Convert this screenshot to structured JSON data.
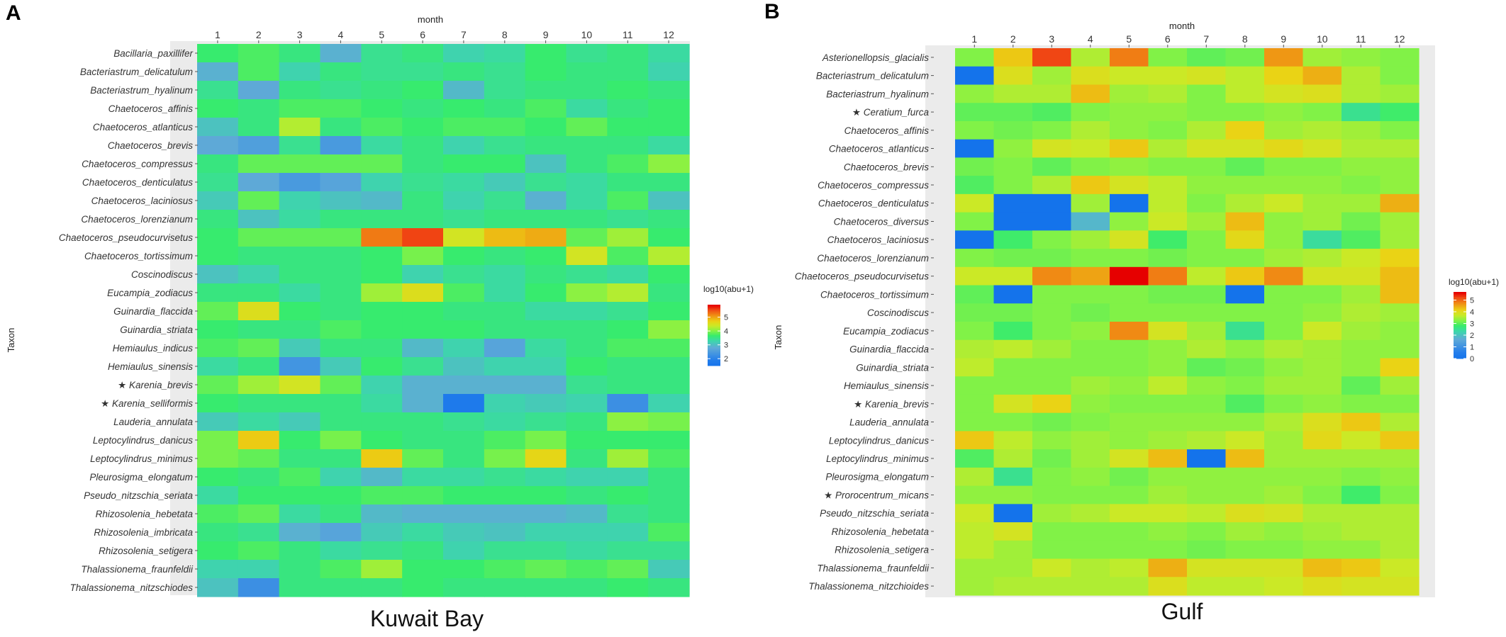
{
  "figure": {
    "colorbar_title": "log10(abu+1)",
    "x_axis_title": "month",
    "y_axis_title": "Taxon",
    "star_glyph": "★"
  },
  "chart_data": [
    {
      "type": "heatmap",
      "panel_label": "A",
      "caption": "Kuwait Bay",
      "xlabel": "month",
      "ylabel": "Taxon",
      "legend_title": "log10(abu+1)",
      "x": [
        "1",
        "2",
        "3",
        "4",
        "5",
        "6",
        "7",
        "8",
        "9",
        "10",
        "11",
        "12"
      ],
      "rows": [
        "Bacillaria_paxillifer",
        "Bacteriastrum_delicatulum",
        "Bacteriastrum_hyalinum",
        "Chaetoceros_affinis",
        "Chaetoceros_atlanticus",
        "Chaetoceros_brevis",
        "Chaetoceros_compressus",
        "Chaetoceros_denticulatus",
        "Chaetoceros_laciniosus",
        "Chaetoceros_lorenzianum",
        "Chaetoceros_pseudocurvisetus",
        "Chaetoceros_tortissimum",
        "Coscinodiscus",
        "Eucampia_zodiacus",
        "Guinardia_flaccida",
        "Guinardia_striata",
        "Hemiaulus_indicus",
        "Hemiaulus_sinensis",
        "Karenia_brevis",
        "Karenia_selliformis",
        "Lauderia_annulata",
        "Leptocylindrus_danicus",
        "Leptocylindrus_minimus",
        "Pleurosigma_elongatum",
        "Pseudo_nitzschia_seriata",
        "Rhizosolenia_hebetata",
        "Rhizosolenia_imbricata",
        "Rhizosolenia_setigera",
        "Thalassionema_fraunfeldii",
        "Thalassionema_nitzschiodes"
      ],
      "starred": [
        "Karenia_brevis",
        "Karenia_selliformis"
      ],
      "color_range": [
        1.5,
        5.9
      ],
      "legend_ticks": [
        2,
        3,
        4,
        5
      ],
      "values": [
        [
          3.7,
          3.8,
          3.6,
          2.9,
          3.5,
          3.6,
          3.3,
          3.4,
          3.7,
          3.5,
          3.6,
          3.4
        ],
        [
          2.9,
          3.8,
          3.3,
          3.6,
          3.5,
          3.5,
          3.6,
          3.5,
          3.7,
          3.6,
          3.6,
          3.3
        ],
        [
          3.5,
          2.8,
          3.6,
          3.5,
          3.6,
          3.7,
          3.0,
          3.5,
          3.6,
          3.6,
          3.7,
          3.6
        ],
        [
          3.7,
          3.6,
          3.8,
          3.8,
          3.7,
          3.6,
          3.7,
          3.6,
          3.8,
          3.4,
          3.6,
          3.7
        ],
        [
          3.1,
          3.6,
          4.3,
          3.6,
          3.8,
          3.7,
          3.8,
          3.8,
          3.7,
          3.9,
          3.7,
          3.7
        ],
        [
          2.8,
          2.6,
          3.5,
          2.5,
          3.4,
          3.6,
          3.3,
          3.5,
          3.6,
          3.6,
          3.6,
          3.4
        ],
        [
          3.6,
          3.9,
          3.9,
          3.9,
          3.9,
          3.6,
          3.7,
          3.7,
          3.1,
          3.6,
          3.8,
          4.1
        ],
        [
          3.5,
          2.8,
          2.5,
          2.7,
          3.3,
          3.5,
          3.4,
          3.2,
          3.5,
          3.4,
          3.6,
          3.6
        ],
        [
          3.2,
          3.9,
          3.3,
          3.1,
          3.0,
          3.6,
          3.3,
          3.5,
          2.9,
          3.4,
          3.8,
          3.1
        ],
        [
          3.6,
          3.1,
          3.4,
          3.6,
          3.6,
          3.6,
          3.5,
          3.6,
          3.6,
          3.6,
          3.5,
          3.6
        ],
        [
          3.7,
          3.9,
          3.9,
          3.9,
          5.3,
          5.6,
          4.5,
          4.9,
          5.0,
          3.9,
          4.2,
          3.7
        ],
        [
          3.7,
          3.6,
          3.6,
          3.6,
          3.7,
          4.0,
          3.7,
          3.6,
          3.7,
          4.5,
          3.8,
          4.3
        ],
        [
          3.1,
          3.3,
          3.6,
          3.6,
          3.7,
          3.3,
          3.5,
          3.4,
          3.6,
          3.5,
          3.4,
          3.7
        ],
        [
          3.6,
          3.6,
          3.4,
          3.6,
          4.2,
          4.6,
          3.8,
          3.4,
          3.7,
          4.1,
          4.3,
          3.6
        ],
        [
          3.9,
          4.6,
          3.7,
          3.6,
          3.7,
          3.7,
          3.6,
          3.6,
          3.4,
          3.4,
          3.5,
          3.7
        ],
        [
          3.7,
          3.6,
          3.6,
          3.8,
          3.7,
          3.7,
          3.7,
          3.6,
          3.6,
          3.6,
          3.7,
          4.1
        ],
        [
          3.8,
          3.9,
          3.2,
          3.6,
          3.6,
          3.0,
          3.3,
          2.7,
          3.4,
          3.6,
          3.8,
          3.8
        ],
        [
          3.4,
          3.6,
          2.4,
          3.2,
          3.7,
          3.5,
          3.1,
          3.3,
          3.3,
          3.7,
          3.6,
          3.6
        ],
        [
          3.9,
          4.2,
          4.5,
          3.9,
          3.3,
          2.9,
          2.9,
          2.9,
          2.9,
          3.5,
          3.6,
          3.6
        ],
        [
          3.7,
          3.6,
          3.6,
          3.6,
          3.4,
          2.9,
          1.8,
          3.3,
          3.2,
          3.3,
          2.3,
          3.3
        ],
        [
          3.2,
          3.4,
          3.2,
          3.6,
          3.6,
          3.6,
          3.5,
          3.4,
          3.5,
          3.6,
          4.1,
          4.0
        ],
        [
          4.0,
          4.8,
          3.7,
          4.0,
          3.7,
          3.6,
          3.6,
          3.8,
          4.0,
          3.7,
          3.7,
          3.7
        ],
        [
          4.0,
          3.9,
          3.6,
          3.6,
          4.8,
          3.9,
          3.6,
          4.0,
          4.7,
          3.6,
          4.2,
          3.8
        ],
        [
          3.7,
          3.6,
          3.8,
          3.3,
          3.0,
          3.4,
          3.4,
          3.5,
          3.4,
          3.3,
          3.3,
          3.6
        ],
        [
          3.4,
          3.7,
          3.7,
          3.7,
          3.8,
          3.8,
          3.7,
          3.7,
          3.7,
          3.6,
          3.7,
          3.6
        ],
        [
          3.8,
          3.9,
          3.4,
          3.6,
          3.0,
          2.9,
          2.9,
          2.9,
          2.9,
          3.0,
          3.5,
          3.6
        ],
        [
          3.6,
          3.5,
          2.9,
          2.7,
          3.2,
          3.4,
          3.2,
          3.1,
          3.3,
          3.3,
          3.3,
          3.8
        ],
        [
          3.7,
          3.8,
          3.6,
          3.4,
          3.5,
          3.6,
          3.3,
          3.5,
          3.5,
          3.4,
          3.5,
          3.5
        ],
        [
          3.3,
          3.3,
          3.6,
          3.8,
          4.2,
          3.7,
          3.7,
          3.8,
          3.9,
          3.8,
          3.9,
          3.2
        ],
        [
          3.1,
          2.3,
          3.6,
          3.6,
          3.6,
          3.7,
          3.6,
          3.6,
          3.6,
          3.6,
          3.7,
          3.6
        ]
      ]
    },
    {
      "type": "heatmap",
      "panel_label": "B",
      "caption": "Gulf",
      "xlabel": "month",
      "ylabel": "Taxon",
      "legend_title": "log10(abu+1)",
      "x": [
        "1",
        "2",
        "3",
        "4",
        "5",
        "6",
        "7",
        "8",
        "9",
        "10",
        "11",
        "12"
      ],
      "rows": [
        "Asterionellopsis_glacialis",
        "Bacteriastrum_delicatulum",
        "Bacteriastrum_hyalinum",
        "Ceratium_furca",
        "Chaetoceros_affinis",
        "Chaetoceros_atlanticus",
        "Chaetoceros_brevis",
        "Chaetoceros_compressus",
        "Chaetoceros_denticulatus",
        "Chaetoceros_diversus",
        "Chaetoceros_laciniosus",
        "Chaetoceros_lorenzianum",
        "Chaetoceros_pseudocurvisetus",
        "Chaetoceros_tortissimum",
        "Coscinodiscus",
        "Eucampia_zodiacus",
        "Guinardia_flaccida",
        "Guinardia_striata",
        "Hemiaulus_sinensis",
        "Karenia_brevis",
        "Lauderia_annulata",
        "Leptocylindrus_danicus",
        "Leptocylindrus_minimus",
        "Pleurosigma_elongatum",
        "Prorocentrum_micans",
        "Pseudo_nitzschia_seriata",
        "Rhizosolenia_hebetata",
        "Rhizosolenia_setigera",
        "Thalassionema_fraunfeldii",
        "Thalassionema_nitzchioides"
      ],
      "starred": [
        "Ceratium_furca",
        "Karenia_brevis",
        "Prorocentrum_micans"
      ],
      "color_range": [
        0,
        5.7
      ],
      "legend_ticks": [
        0,
        1,
        2,
        3,
        4,
        5
      ],
      "values": [
        [
          3.3,
          4.3,
          5.3,
          3.6,
          4.9,
          3.3,
          3.1,
          3.2,
          4.7,
          3.5,
          3.4,
          3.3
        ],
        [
          0,
          4.0,
          3.5,
          4.0,
          3.8,
          3.8,
          3.9,
          3.7,
          4.2,
          4.5,
          3.6,
          3.3
        ],
        [
          3.4,
          3.6,
          3.6,
          4.4,
          3.5,
          3.6,
          3.3,
          3.7,
          3.9,
          4.0,
          3.6,
          3.5
        ],
        [
          3.1,
          3.1,
          3.0,
          3.3,
          3.4,
          3.4,
          3.3,
          3.3,
          3.4,
          3.3,
          2.6,
          2.9
        ],
        [
          3.3,
          3.2,
          3.3,
          3.6,
          3.4,
          3.3,
          3.6,
          4.2,
          3.5,
          3.6,
          3.5,
          3.3
        ],
        [
          0,
          3.4,
          3.9,
          3.8,
          4.3,
          3.6,
          3.9,
          3.9,
          4.1,
          3.9,
          3.6,
          3.6
        ],
        [
          3.2,
          3.3,
          3.1,
          3.3,
          3.4,
          3.3,
          3.3,
          3.1,
          3.3,
          3.3,
          3.4,
          3.4
        ],
        [
          3.0,
          3.3,
          3.6,
          4.3,
          3.9,
          3.7,
          3.4,
          3.4,
          3.4,
          3.4,
          3.3,
          3.4
        ],
        [
          3.8,
          0,
          0,
          3.5,
          0,
          3.7,
          3.3,
          3.6,
          3.8,
          3.5,
          3.5,
          4.5
        ],
        [
          3.3,
          0,
          0,
          1.9,
          3.4,
          3.8,
          3.5,
          4.4,
          3.4,
          3.5,
          3.2,
          3.5
        ],
        [
          0,
          2.9,
          3.3,
          3.5,
          3.9,
          2.9,
          3.3,
          4.1,
          3.4,
          2.5,
          3.0,
          3.5
        ],
        [
          3.3,
          3.2,
          3.2,
          3.3,
          3.3,
          3.2,
          3.3,
          3.3,
          3.5,
          3.6,
          3.8,
          4.2
        ],
        [
          3.8,
          3.8,
          4.8,
          4.6,
          5.7,
          4.9,
          3.7,
          4.3,
          4.8,
          3.9,
          3.9,
          4.4
        ],
        [
          3.1,
          0,
          3.3,
          3.3,
          3.3,
          3.2,
          3.2,
          0,
          3.3,
          3.3,
          3.5,
          4.4
        ],
        [
          3.2,
          3.2,
          3.3,
          3.2,
          3.3,
          3.3,
          3.3,
          3.3,
          3.3,
          3.4,
          3.6,
          3.5
        ],
        [
          3.3,
          2.9,
          3.3,
          3.4,
          4.8,
          3.9,
          3.5,
          2.6,
          3.3,
          3.8,
          3.5,
          3.4
        ],
        [
          3.6,
          3.7,
          3.5,
          3.3,
          3.3,
          3.4,
          3.6,
          3.4,
          3.6,
          3.5,
          3.4,
          3.4
        ],
        [
          3.7,
          3.3,
          3.3,
          3.3,
          3.3,
          3.4,
          3.1,
          3.2,
          3.4,
          3.5,
          3.4,
          4.2
        ],
        [
          3.3,
          3.3,
          3.3,
          3.5,
          3.4,
          3.7,
          3.4,
          3.3,
          3.5,
          3.5,
          3.1,
          3.5
        ],
        [
          3.3,
          3.9,
          4.2,
          3.4,
          3.3,
          3.3,
          3.3,
          3.0,
          3.3,
          3.4,
          3.3,
          3.3
        ],
        [
          3.3,
          3.3,
          3.2,
          3.3,
          3.4,
          3.4,
          3.4,
          3.4,
          3.6,
          4.0,
          4.3,
          3.6
        ],
        [
          4.3,
          3.7,
          3.4,
          3.5,
          3.4,
          3.5,
          3.6,
          3.8,
          3.5,
          4.1,
          3.8,
          4.3
        ],
        [
          3.0,
          3.6,
          3.2,
          3.5,
          3.9,
          4.4,
          0,
          4.4,
          3.5,
          3.5,
          3.5,
          3.5
        ],
        [
          3.6,
          2.6,
          3.3,
          3.4,
          3.2,
          3.4,
          3.4,
          3.4,
          3.4,
          3.4,
          3.3,
          3.4
        ],
        [
          3.4,
          3.4,
          3.3,
          3.3,
          3.3,
          3.5,
          3.4,
          3.4,
          3.5,
          3.3,
          2.9,
          3.3
        ],
        [
          3.8,
          0,
          3.5,
          3.6,
          3.8,
          3.8,
          3.7,
          4.0,
          3.9,
          3.6,
          3.6,
          3.6
        ],
        [
          3.7,
          3.9,
          3.3,
          3.3,
          3.3,
          3.4,
          3.3,
          3.5,
          3.4,
          3.5,
          3.6,
          3.6
        ],
        [
          3.7,
          3.5,
          3.3,
          3.3,
          3.3,
          3.3,
          3.2,
          3.3,
          3.3,
          3.4,
          3.4,
          3.6
        ],
        [
          3.5,
          3.5,
          3.8,
          3.6,
          3.7,
          4.5,
          3.9,
          3.9,
          3.9,
          4.4,
          4.3,
          3.8
        ],
        [
          3.5,
          3.6,
          3.6,
          3.6,
          3.6,
          4.0,
          3.7,
          3.7,
          3.8,
          4.0,
          3.9,
          3.9
        ]
      ]
    }
  ]
}
